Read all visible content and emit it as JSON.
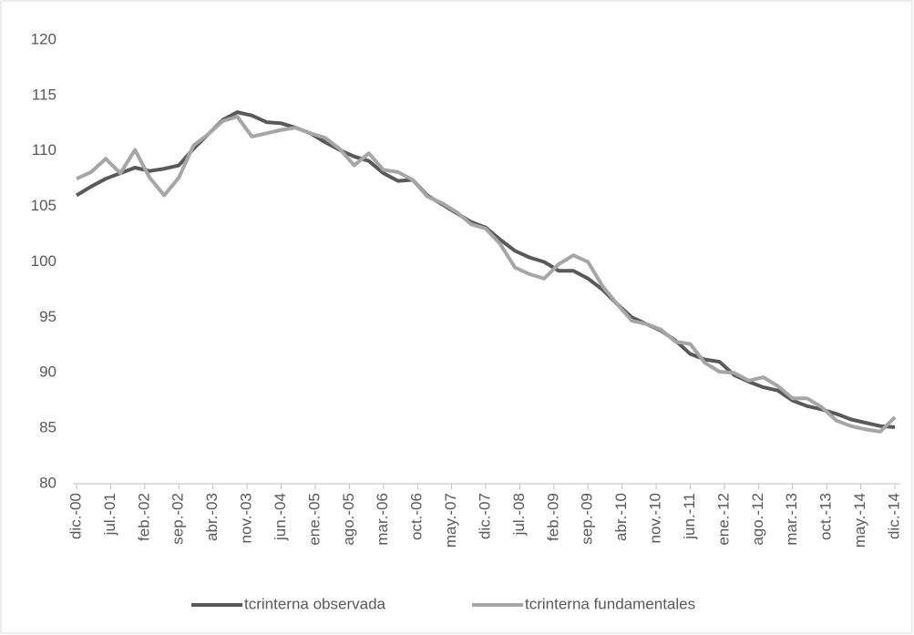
{
  "chart_data": {
    "type": "line",
    "x": [
      0,
      3,
      6,
      9,
      12,
      15,
      18,
      21,
      24,
      27,
      30,
      33,
      36,
      39,
      42,
      45,
      48,
      51,
      54,
      57,
      60,
      63,
      66,
      69,
      72,
      75,
      78,
      81,
      84,
      87,
      90,
      93,
      96,
      99,
      102,
      105,
      108,
      111,
      114,
      117,
      120,
      123,
      126,
      129,
      132,
      135,
      138,
      141,
      144,
      147,
      150,
      153,
      156,
      159,
      162,
      165,
      168
    ],
    "xlim": [
      0,
      168
    ],
    "xticks": [
      {
        "value": 0,
        "label": "dic.-00"
      },
      {
        "value": 7,
        "label": "jul.-01"
      },
      {
        "value": 14,
        "label": "feb.-02"
      },
      {
        "value": 21,
        "label": "sep.-02"
      },
      {
        "value": 28,
        "label": "abr.-03"
      },
      {
        "value": 35,
        "label": "nov.-03"
      },
      {
        "value": 42,
        "label": "jun.-04"
      },
      {
        "value": 49,
        "label": "ene.-05"
      },
      {
        "value": 56,
        "label": "ago.-05"
      },
      {
        "value": 63,
        "label": "mar.-06"
      },
      {
        "value": 70,
        "label": "oct.-06"
      },
      {
        "value": 77,
        "label": "may.-07"
      },
      {
        "value": 84,
        "label": "dic.-07"
      },
      {
        "value": 91,
        "label": "jul.-08"
      },
      {
        "value": 98,
        "label": "feb.-09"
      },
      {
        "value": 105,
        "label": "sep.-09"
      },
      {
        "value": 112,
        "label": "abr.-10"
      },
      {
        "value": 119,
        "label": "nov.-10"
      },
      {
        "value": 126,
        "label": "jun.-11"
      },
      {
        "value": 133,
        "label": "ene.-12"
      },
      {
        "value": 140,
        "label": "ago.-12"
      },
      {
        "value": 147,
        "label": "mar.-13"
      },
      {
        "value": 154,
        "label": "oct.-13"
      },
      {
        "value": 161,
        "label": "may.-14"
      },
      {
        "value": 168,
        "label": "dic.-14"
      }
    ],
    "ylim": [
      80,
      120
    ],
    "yticks": [
      80,
      85,
      90,
      95,
      100,
      105,
      110,
      115,
      120
    ],
    "grid": false,
    "legend": "bottom",
    "series": [
      {
        "name": "tcrinterna observada",
        "color": "#595959",
        "values": [
          106.0,
          106.8,
          107.5,
          108.0,
          108.5,
          108.2,
          108.4,
          108.7,
          110.2,
          111.5,
          112.8,
          113.5,
          113.2,
          112.6,
          112.5,
          112.1,
          111.6,
          110.8,
          110.1,
          109.5,
          109.1,
          108.0,
          107.3,
          107.4,
          106.0,
          105.2,
          104.4,
          103.6,
          103.1,
          102.0,
          101.0,
          100.4,
          100.0,
          99.2,
          99.2,
          98.5,
          97.5,
          96.2,
          95.0,
          94.4,
          93.8,
          92.9,
          91.7,
          91.2,
          91.0,
          89.8,
          89.2,
          88.7,
          88.4,
          87.5,
          87.0,
          86.7,
          86.3,
          85.8,
          85.5,
          85.2,
          85.1
        ]
      },
      {
        "name": "tcrinterna fundamentales",
        "color": "#a6a6a6",
        "values": [
          107.5,
          108.1,
          109.3,
          108.0,
          110.1,
          107.6,
          106.0,
          107.6,
          110.5,
          111.5,
          112.7,
          113.1,
          111.3,
          111.6,
          111.9,
          112.1,
          111.6,
          111.2,
          110.2,
          108.7,
          109.8,
          108.3,
          108.1,
          107.4,
          105.9,
          105.3,
          104.5,
          103.4,
          103.0,
          101.6,
          99.5,
          98.9,
          98.5,
          99.8,
          100.6,
          100.0,
          97.8,
          96.2,
          94.7,
          94.4,
          93.9,
          92.8,
          92.6,
          90.9,
          90.1,
          90.0,
          89.3,
          89.6,
          88.8,
          87.7,
          87.7,
          86.9,
          85.7,
          85.2,
          84.9,
          84.7,
          86.0
        ]
      }
    ]
  }
}
